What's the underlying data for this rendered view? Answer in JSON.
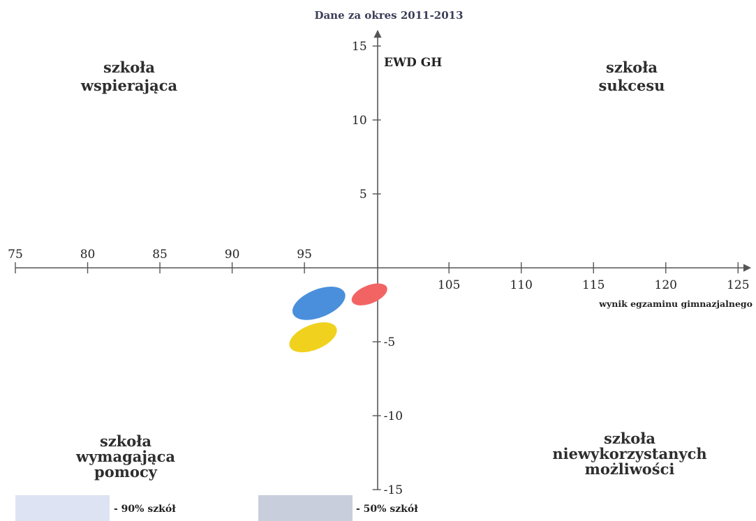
{
  "chart_data": {
    "type": "scatter",
    "title": "Dane za okres 2011-2013",
    "xlabel": "wynik egzaminu gimnazjalnego",
    "ylabel": "EWD GH",
    "xlim": [
      75,
      126
    ],
    "ylim": [
      -15,
      15
    ],
    "x_ticks": [
      "75",
      "80",
      "85",
      "90",
      "95",
      "105",
      "110",
      "115",
      "120",
      "125"
    ],
    "y_ticks": [
      "15",
      "10",
      "5",
      "-5",
      "-10",
      "-15"
    ],
    "quadrants": {
      "top_left": [
        "szkoła",
        "wspierająca"
      ],
      "top_right": [
        "szkoła",
        "sukcesu"
      ],
      "bottom_left": [
        "szkoła",
        "wymagająca",
        "pomocy"
      ],
      "bottom_right": [
        "szkoła",
        "niewykorzystanych",
        "możliwości"
      ]
    },
    "series": [
      {
        "color": "#4a8fdc",
        "x": 96.0,
        "y": -2.4
      },
      {
        "color": "#f26464",
        "x": 99.5,
        "y": -1.8
      },
      {
        "color": "#f0d21e",
        "x": 95.6,
        "y": -4.7
      }
    ],
    "legend": [
      {
        "label": "- 90% szkół",
        "color": "#dde3f3"
      },
      {
        "label": "- 50% szkół",
        "color": "#c9cedc"
      }
    ],
    "grid": false,
    "legend_position": "bottom"
  }
}
